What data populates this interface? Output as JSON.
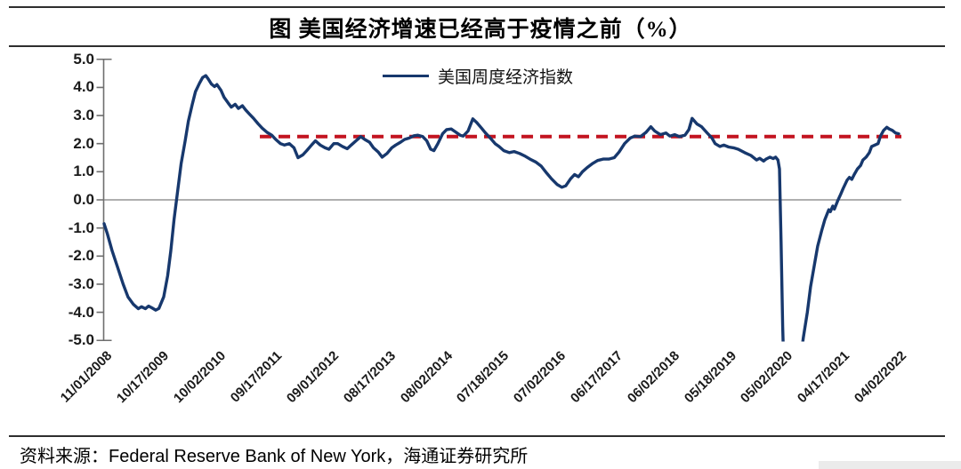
{
  "title": "图  美国经济增速已经高于疫情之前（%）",
  "legend": {
    "label": "美国周度经济指数"
  },
  "source": {
    "prefix": "资料来源：",
    "latin": "Federal Reserve Bank of New York",
    "suffix": "，海通证券研究所"
  },
  "colors": {
    "series": "#17386d",
    "reference": "#c31420",
    "zero_line": "#7f7f7f",
    "axis": "#6e6e6e"
  },
  "chart_data": {
    "type": "line",
    "title": "图  美国经济增速已经高于疫情之前（%）",
    "ylabel": "",
    "xlabel": "",
    "ylim": [
      -5.0,
      5.0
    ],
    "yticks": [
      "5.0",
      "4.0",
      "3.0",
      "2.0",
      "1.0",
      "0.0",
      "-1.0",
      "-2.0",
      "-3.0",
      "-4.0",
      "-5.0"
    ],
    "grid": "zero-line-only",
    "legend_position": "top-center",
    "categories": [
      "11/01/2008",
      "10/17/2009",
      "10/02/2010",
      "09/17/2011",
      "09/01/2012",
      "08/17/2013",
      "08/02/2014",
      "07/18/2015",
      "07/02/2016",
      "06/17/2017",
      "06/02/2018",
      "05/18/2019",
      "05/02/2020",
      "04/17/2021",
      "04/02/2022"
    ],
    "reference_line": {
      "value": 2.25,
      "style": "dashed",
      "starts_at_fraction": 0.196
    },
    "series": [
      {
        "name": "美国周度经济指数",
        "points": [
          [
            0.0,
            -0.85
          ],
          [
            0.004,
            -1.2
          ],
          [
            0.01,
            -1.8
          ],
          [
            0.017,
            -2.4
          ],
          [
            0.024,
            -3.0
          ],
          [
            0.03,
            -3.45
          ],
          [
            0.037,
            -3.72
          ],
          [
            0.043,
            -3.87
          ],
          [
            0.047,
            -3.8
          ],
          [
            0.052,
            -3.87
          ],
          [
            0.056,
            -3.78
          ],
          [
            0.06,
            -3.84
          ],
          [
            0.065,
            -3.92
          ],
          [
            0.069,
            -3.86
          ],
          [
            0.075,
            -3.45
          ],
          [
            0.08,
            -2.7
          ],
          [
            0.084,
            -1.8
          ],
          [
            0.088,
            -0.7
          ],
          [
            0.093,
            0.4
          ],
          [
            0.097,
            1.3
          ],
          [
            0.102,
            2.1
          ],
          [
            0.106,
            2.8
          ],
          [
            0.111,
            3.4
          ],
          [
            0.115,
            3.85
          ],
          [
            0.12,
            4.15
          ],
          [
            0.124,
            4.35
          ],
          [
            0.128,
            4.42
          ],
          [
            0.131,
            4.3
          ],
          [
            0.135,
            4.12
          ],
          [
            0.139,
            4.03
          ],
          [
            0.142,
            4.1
          ],
          [
            0.147,
            3.9
          ],
          [
            0.151,
            3.65
          ],
          [
            0.156,
            3.45
          ],
          [
            0.16,
            3.3
          ],
          [
            0.165,
            3.4
          ],
          [
            0.169,
            3.25
          ],
          [
            0.174,
            3.35
          ],
          [
            0.178,
            3.2
          ],
          [
            0.183,
            3.05
          ],
          [
            0.188,
            2.9
          ],
          [
            0.194,
            2.7
          ],
          [
            0.199,
            2.55
          ],
          [
            0.205,
            2.4
          ],
          [
            0.211,
            2.3
          ],
          [
            0.216,
            2.15
          ],
          [
            0.222,
            2.0
          ],
          [
            0.227,
            1.95
          ],
          [
            0.233,
            2.0
          ],
          [
            0.239,
            1.85
          ],
          [
            0.244,
            1.5
          ],
          [
            0.25,
            1.6
          ],
          [
            0.255,
            1.75
          ],
          [
            0.261,
            1.95
          ],
          [
            0.266,
            2.1
          ],
          [
            0.272,
            1.95
          ],
          [
            0.278,
            1.85
          ],
          [
            0.283,
            1.8
          ],
          [
            0.289,
            2.0
          ],
          [
            0.294,
            2.0
          ],
          [
            0.3,
            1.9
          ],
          [
            0.306,
            1.82
          ],
          [
            0.311,
            1.95
          ],
          [
            0.317,
            2.1
          ],
          [
            0.323,
            2.25
          ],
          [
            0.328,
            2.15
          ],
          [
            0.334,
            2.05
          ],
          [
            0.339,
            1.85
          ],
          [
            0.345,
            1.7
          ],
          [
            0.35,
            1.52
          ],
          [
            0.356,
            1.65
          ],
          [
            0.362,
            1.85
          ],
          [
            0.367,
            1.95
          ],
          [
            0.373,
            2.05
          ],
          [
            0.378,
            2.15
          ],
          [
            0.384,
            2.2
          ],
          [
            0.39,
            2.28
          ],
          [
            0.395,
            2.3
          ],
          [
            0.401,
            2.25
          ],
          [
            0.406,
            2.1
          ],
          [
            0.411,
            1.8
          ],
          [
            0.415,
            1.75
          ],
          [
            0.42,
            2.0
          ],
          [
            0.426,
            2.35
          ],
          [
            0.431,
            2.5
          ],
          [
            0.437,
            2.52
          ],
          [
            0.442,
            2.42
          ],
          [
            0.448,
            2.3
          ],
          [
            0.452,
            2.27
          ],
          [
            0.458,
            2.45
          ],
          [
            0.464,
            2.88
          ],
          [
            0.469,
            2.75
          ],
          [
            0.475,
            2.55
          ],
          [
            0.48,
            2.38
          ],
          [
            0.486,
            2.2
          ],
          [
            0.492,
            2.0
          ],
          [
            0.497,
            1.9
          ],
          [
            0.503,
            1.75
          ],
          [
            0.51,
            1.68
          ],
          [
            0.516,
            1.72
          ],
          [
            0.523,
            1.65
          ],
          [
            0.53,
            1.55
          ],
          [
            0.536,
            1.45
          ],
          [
            0.543,
            1.35
          ],
          [
            0.55,
            1.2
          ],
          [
            0.557,
            0.95
          ],
          [
            0.563,
            0.75
          ],
          [
            0.57,
            0.55
          ],
          [
            0.576,
            0.45
          ],
          [
            0.581,
            0.5
          ],
          [
            0.587,
            0.75
          ],
          [
            0.592,
            0.9
          ],
          [
            0.597,
            0.82
          ],
          [
            0.602,
            1.0
          ],
          [
            0.608,
            1.15
          ],
          [
            0.615,
            1.3
          ],
          [
            0.621,
            1.4
          ],
          [
            0.628,
            1.45
          ],
          [
            0.635,
            1.45
          ],
          [
            0.642,
            1.5
          ],
          [
            0.648,
            1.7
          ],
          [
            0.655,
            2.0
          ],
          [
            0.662,
            2.2
          ],
          [
            0.668,
            2.27
          ],
          [
            0.675,
            2.25
          ],
          [
            0.682,
            2.4
          ],
          [
            0.688,
            2.6
          ],
          [
            0.693,
            2.45
          ],
          [
            0.7,
            2.32
          ],
          [
            0.707,
            2.38
          ],
          [
            0.712,
            2.27
          ],
          [
            0.718,
            2.32
          ],
          [
            0.724,
            2.25
          ],
          [
            0.731,
            2.3
          ],
          [
            0.736,
            2.5
          ],
          [
            0.74,
            2.9
          ],
          [
            0.746,
            2.7
          ],
          [
            0.752,
            2.6
          ],
          [
            0.759,
            2.38
          ],
          [
            0.765,
            2.2
          ],
          [
            0.769,
            2.0
          ],
          [
            0.775,
            1.9
          ],
          [
            0.78,
            1.95
          ],
          [
            0.786,
            1.88
          ],
          [
            0.792,
            1.85
          ],
          [
            0.798,
            1.8
          ],
          [
            0.806,
            1.68
          ],
          [
            0.814,
            1.58
          ],
          [
            0.821,
            1.42
          ],
          [
            0.825,
            1.48
          ],
          [
            0.83,
            1.38
          ],
          [
            0.833,
            1.45
          ],
          [
            0.838,
            1.52
          ],
          [
            0.842,
            1.47
          ],
          [
            0.845,
            1.52
          ],
          [
            0.848,
            1.42
          ],
          [
            0.85,
            1.1
          ],
          [
            0.852,
            -1.5
          ],
          [
            0.854,
            -4.5
          ],
          [
            0.857,
            -7.6
          ],
          [
            0.866,
            -7.4
          ],
          [
            0.875,
            -6.0
          ],
          [
            0.88,
            -4.9
          ],
          [
            0.885,
            -4.0
          ],
          [
            0.889,
            -3.1
          ],
          [
            0.894,
            -2.3
          ],
          [
            0.898,
            -1.65
          ],
          [
            0.903,
            -1.1
          ],
          [
            0.907,
            -0.7
          ],
          [
            0.912,
            -0.35
          ],
          [
            0.914,
            -0.42
          ],
          [
            0.917,
            -0.22
          ],
          [
            0.919,
            -0.33
          ],
          [
            0.923,
            -0.05
          ],
          [
            0.927,
            0.2
          ],
          [
            0.93,
            0.4
          ],
          [
            0.935,
            0.7
          ],
          [
            0.938,
            0.8
          ],
          [
            0.941,
            0.73
          ],
          [
            0.944,
            0.9
          ],
          [
            0.948,
            1.1
          ],
          [
            0.952,
            1.22
          ],
          [
            0.955,
            1.42
          ],
          [
            0.959,
            1.52
          ],
          [
            0.963,
            1.68
          ],
          [
            0.966,
            1.9
          ],
          [
            0.97,
            1.95
          ],
          [
            0.974,
            2.0
          ],
          [
            0.977,
            2.27
          ],
          [
            0.981,
            2.47
          ],
          [
            0.985,
            2.58
          ],
          [
            0.988,
            2.52
          ],
          [
            0.992,
            2.47
          ],
          [
            0.996,
            2.38
          ],
          [
            1.0,
            2.35
          ]
        ]
      }
    ]
  }
}
